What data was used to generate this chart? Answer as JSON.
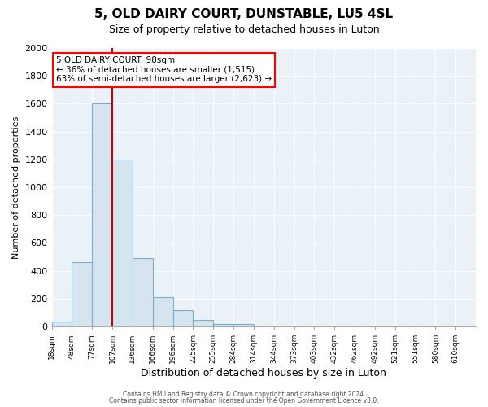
{
  "title": "5, OLD DAIRY COURT, DUNSTABLE, LU5 4SL",
  "subtitle": "Size of property relative to detached houses in Luton",
  "xlabel": "Distribution of detached houses by size in Luton",
  "ylabel": "Number of detached properties",
  "bar_color": "#d6e4f0",
  "bar_edge_color": "#7aaecd",
  "bin_labels": [
    "18sqm",
    "48sqm",
    "77sqm",
    "107sqm",
    "136sqm",
    "166sqm",
    "196sqm",
    "225sqm",
    "255sqm",
    "284sqm",
    "314sqm",
    "344sqm",
    "373sqm",
    "403sqm",
    "432sqm",
    "462sqm",
    "492sqm",
    "521sqm",
    "551sqm",
    "580sqm",
    "610sqm"
  ],
  "bar_values": [
    35,
    460,
    1600,
    1200,
    490,
    210,
    115,
    45,
    20,
    15,
    0,
    0,
    0,
    0,
    0,
    0,
    0,
    0,
    0,
    0,
    0
  ],
  "vline_position": 3,
  "vline_color": "#cc0000",
  "annotation_title": "5 OLD DAIRY COURT: 98sqm",
  "annotation_line1": "← 36% of detached houses are smaller (1,515)",
  "annotation_line2": "63% of semi-detached houses are larger (2,623) →",
  "ylim": [
    0,
    2000
  ],
  "yticks": [
    0,
    200,
    400,
    600,
    800,
    1000,
    1200,
    1400,
    1600,
    1800,
    2000
  ],
  "footer1": "Contains HM Land Registry data © Crown copyright and database right 2024.",
  "footer2": "Contains public sector information licensed under the Open Government Licence v3.0.",
  "plot_bg_color": "#eaf2f8",
  "grid_color": "#ffffff"
}
